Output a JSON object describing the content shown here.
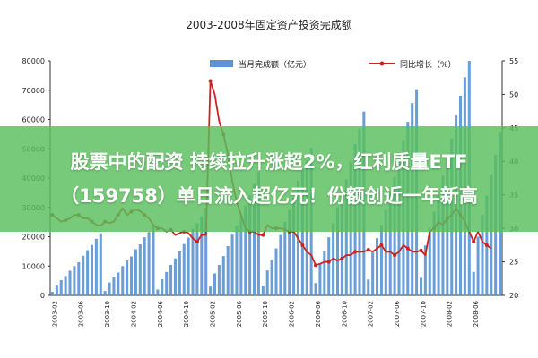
{
  "chart_data": {
    "type": "bar+line",
    "title": "2003-2008年固定资产投资完成额",
    "series": [
      {
        "name": "当月完成额（亿元）",
        "axis": "left",
        "type": "bar",
        "color": "#5b93d3",
        "values": [
          1200,
          3600,
          5200,
          6600,
          8400,
          10000,
          11300,
          13500,
          15400,
          17200,
          19300,
          21100,
          1500,
          4400,
          6100,
          7800,
          10000,
          11900,
          13300,
          15700,
          17400,
          19800,
          21600,
          24000,
          2000,
          5500,
          8000,
          10400,
          12600,
          15000,
          17500,
          19700,
          22700,
          24600,
          26900,
          29900,
          3000,
          7500,
          10400,
          13400,
          16800,
          20700,
          23700,
          27000,
          30600,
          34100,
          38000,
          42000,
          3100,
          8500,
          12000,
          16000,
          20600,
          25100,
          29100,
          33300,
          39100,
          43200,
          46000,
          50300,
          4200,
          11000,
          15000,
          19800,
          24600,
          30100,
          34500,
          39600,
          45800,
          51600,
          56900,
          62700,
          5400,
          14600,
          19500,
          24000,
          29100,
          35000,
          40400,
          45900,
          53000,
          59200,
          65600,
          70300,
          6000,
          17000,
          23000,
          28500,
          34200,
          40800,
          47200,
          53400,
          61600,
          68100,
          74400,
          80000,
          8000,
          20000,
          27500,
          34000,
          41000,
          48000,
          55600
        ]
      },
      {
        "name": "同比增长（%）",
        "axis": "right",
        "type": "line",
        "color": "#cc2222",
        "values": [
          32,
          31.5,
          31,
          31.2,
          31.5,
          32,
          32,
          31.5,
          31.5,
          31,
          30.5,
          30.4,
          31,
          30.8,
          31,
          32,
          33,
          32,
          32.5,
          32.8,
          32.6,
          32,
          31.5,
          30.5,
          30,
          30,
          29.5,
          29.8,
          29,
          29.3,
          29.5,
          29.3,
          28.5,
          28,
          29,
          29,
          52,
          50,
          46,
          44,
          41,
          37,
          34,
          32,
          30,
          29.5,
          29.5,
          29,
          29,
          30.5,
          30,
          30,
          30,
          29.8,
          29.5,
          29.5,
          28.5,
          27.5,
          26.5,
          26,
          24.5,
          24.7,
          25,
          25,
          25.5,
          25.2,
          25.5,
          26,
          26,
          26.5,
          26.5,
          26.5,
          26.8,
          26.5,
          27,
          27.5,
          26.5,
          26.5,
          26,
          26.5,
          27.5,
          27,
          26.5,
          26.5,
          26.7,
          26,
          29.5,
          30,
          31,
          30.5,
          31.5,
          32,
          33,
          32,
          31,
          29.5,
          28,
          29.5,
          28,
          27.5,
          27
        ]
      }
    ],
    "x_tick_labels": [
      "2003-02",
      "2003-06",
      "2003-10",
      "2004-02",
      "2004-06",
      "2004-10",
      "2005-02",
      "2005-06",
      "2005-10",
      "2006-02",
      "2006-06",
      "2006-10",
      "2007-02",
      "2007-06",
      "2007-10",
      "2008-02",
      "2008-06"
    ],
    "y_left": {
      "ylim": [
        0,
        80000
      ],
      "ticks": [
        0,
        10000,
        20000,
        30000,
        40000,
        50000,
        60000,
        70000,
        80000
      ]
    },
    "y_right": {
      "ylim": [
        20,
        55
      ],
      "ticks": [
        20,
        25,
        30,
        35,
        40,
        45,
        50,
        55
      ]
    },
    "legend_position": "top",
    "grid": false
  },
  "banner": {
    "text": "股票中的配资 持续拉升涨超2%，红利质量ETF（159758）单日流入超亿元！份额创近一年新高",
    "color": "#58be5c"
  }
}
